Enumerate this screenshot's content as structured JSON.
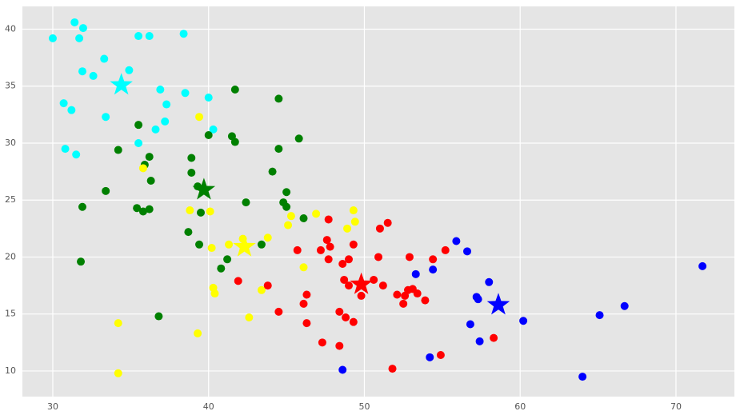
{
  "chart_data": {
    "type": "scatter",
    "xlim": [
      28.05,
      73.75
    ],
    "ylim": [
      7.75,
      42.0
    ],
    "xticks": [
      30,
      40,
      50,
      60,
      70
    ],
    "yticks": [
      10,
      15,
      20,
      25,
      30,
      35,
      40
    ],
    "grid": true,
    "series": [
      {
        "color": "#00ffff",
        "marker": "o",
        "x": [
          30.0,
          31.4,
          31.95,
          31.7,
          31.9,
          32.6,
          33.3,
          34.9,
          35.5,
          36.2,
          38.4,
          30.7,
          31.2,
          33.4,
          36.9,
          37.3,
          38.5,
          40.0,
          37.2,
          36.6,
          40.3,
          30.8,
          31.5,
          35.5
        ],
        "y": [
          39.2,
          40.6,
          40.1,
          39.2,
          36.3,
          35.9,
          37.4,
          36.4,
          39.4,
          39.4,
          39.6,
          33.5,
          32.9,
          32.3,
          34.7,
          33.4,
          34.4,
          34.0,
          31.9,
          31.2,
          31.2,
          29.5,
          29.0,
          30.0
        ]
      },
      {
        "color": "#008000",
        "marker": "o",
        "x": [
          41.7,
          44.5,
          45.8,
          35.5,
          41.5,
          40.0,
          41.7,
          34.2,
          44.5,
          36.2,
          38.9,
          35.9,
          38.9,
          44.1,
          36.3,
          33.4,
          39.3,
          45.0,
          42.4,
          44.8,
          31.9,
          35.4,
          35.8,
          36.2,
          39.5,
          45.0,
          46.1,
          38.7,
          39.4,
          43.4,
          41.2,
          31.8,
          40.8,
          36.8
        ],
        "y": [
          34.7,
          33.9,
          30.4,
          31.6,
          30.6,
          30.7,
          30.1,
          29.4,
          29.5,
          28.8,
          28.7,
          28.1,
          27.4,
          27.5,
          26.7,
          25.8,
          26.2,
          25.7,
          24.8,
          24.8,
          24.4,
          24.3,
          24.0,
          24.2,
          23.9,
          24.4,
          23.4,
          22.2,
          21.1,
          21.1,
          19.8,
          19.6,
          19.0,
          14.8
        ]
      },
      {
        "color": "#ffff00",
        "marker": "o",
        "x": [
          39.4,
          35.8,
          38.8,
          40.1,
          46.9,
          49.3,
          49.4,
          45.3,
          45.1,
          48.9,
          43.8,
          42.2,
          41.3,
          40.2,
          46.1,
          43.4,
          40.3,
          40.4,
          42.6,
          34.2,
          39.3,
          34.2
        ],
        "y": [
          32.3,
          27.8,
          24.1,
          24.0,
          23.8,
          24.1,
          23.1,
          23.6,
          22.8,
          22.5,
          21.7,
          21.6,
          21.1,
          20.8,
          19.1,
          17.1,
          17.3,
          16.8,
          14.7,
          14.2,
          13.3,
          9.8
        ]
      },
      {
        "color": "#ff0000",
        "marker": "o",
        "x": [
          51.5,
          51.0,
          47.7,
          47.6,
          47.8,
          49.3,
          45.7,
          47.2,
          55.2,
          50.9,
          52.9,
          54.4,
          47.7,
          49.0,
          48.6,
          48.7,
          41.9,
          50.6,
          49.0,
          51.2,
          43.8,
          53.1,
          52.8,
          49.8,
          52.1,
          53.4,
          52.6,
          46.3,
          46.1,
          53.9,
          52.5,
          44.5,
          48.4,
          48.8,
          46.3,
          49.3,
          58.3,
          47.3,
          48.4,
          54.9,
          51.8
        ],
        "y": [
          23.0,
          22.5,
          23.3,
          21.5,
          20.9,
          21.1,
          20.6,
          20.6,
          20.6,
          20.0,
          20.0,
          19.8,
          19.8,
          19.8,
          19.4,
          18.0,
          17.9,
          18.0,
          17.5,
          17.5,
          17.5,
          17.2,
          17.1,
          16.6,
          16.7,
          16.8,
          16.6,
          16.7,
          15.9,
          16.2,
          15.9,
          15.2,
          15.2,
          14.7,
          14.2,
          14.3,
          12.9,
          12.5,
          12.2,
          11.4,
          10.2
        ]
      },
      {
        "color": "#0000ff",
        "marker": "o",
        "x": [
          55.9,
          56.6,
          54.4,
          53.3,
          58.0,
          57.2,
          57.3,
          71.7,
          66.7,
          65.1,
          60.2,
          56.8,
          57.4,
          54.2,
          48.6,
          64.0
        ],
        "y": [
          21.4,
          20.5,
          18.9,
          18.5,
          17.8,
          16.5,
          16.3,
          19.2,
          15.7,
          14.9,
          14.4,
          14.1,
          12.6,
          11.2,
          10.1,
          9.5
        ]
      },
      {
        "color": "#00ffff",
        "marker": "*",
        "x": [
          34.4
        ],
        "y": [
          35.1
        ]
      },
      {
        "color": "#008000",
        "marker": "*",
        "x": [
          39.7
        ],
        "y": [
          25.9
        ]
      },
      {
        "color": "#ffff00",
        "marker": "*",
        "x": [
          42.3
        ],
        "y": [
          20.9
        ]
      },
      {
        "color": "#ff0000",
        "marker": "*",
        "x": [
          49.8
        ],
        "y": [
          17.6
        ]
      },
      {
        "color": "#0000ff",
        "marker": "*",
        "x": [
          58.6
        ],
        "y": [
          15.8
        ]
      }
    ]
  }
}
